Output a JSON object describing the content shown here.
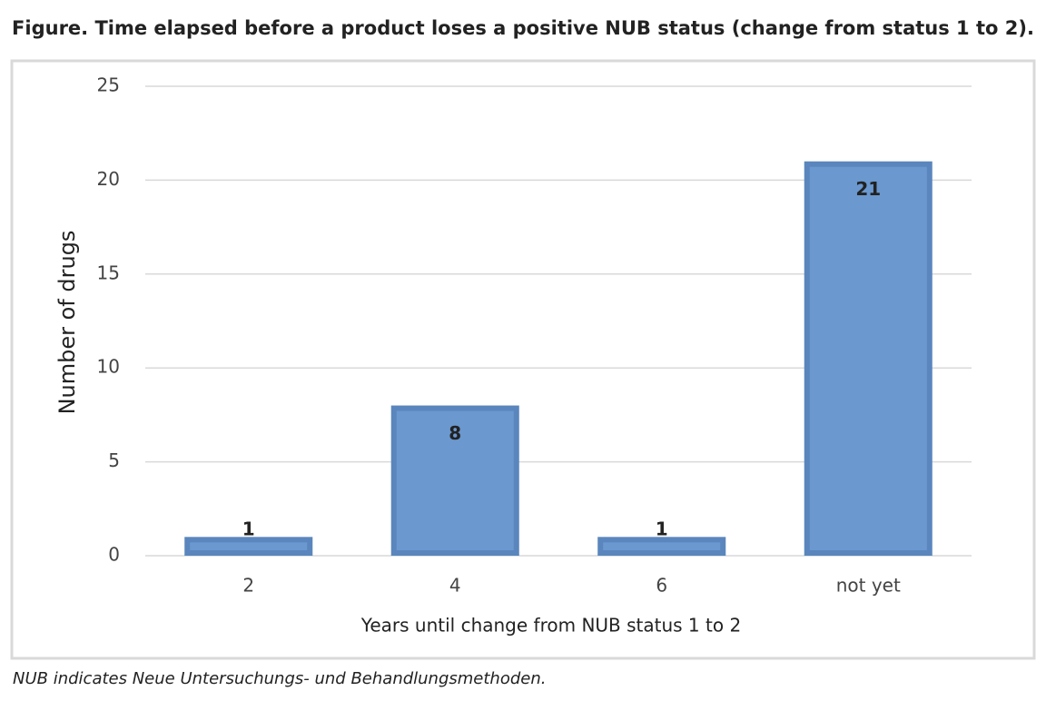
{
  "chart_data": {
    "type": "bar",
    "title": "Figure. Time elapsed before a product loses a positive NUB status (change from status 1 to 2).",
    "footnote": "NUB indicates Neue Untersuchungs- und Behandlungsmethoden.",
    "x_label": "Years until change from NUB status 1 to 2",
    "y_label": "Number of drugs",
    "categories": [
      "2",
      "4",
      "6",
      "not yet"
    ],
    "values": [
      1,
      8,
      1,
      21
    ],
    "color": "#6a98cf",
    "ylim": [
      0,
      25
    ],
    "yticks": [
      0,
      5,
      10,
      15,
      20,
      25
    ],
    "grid": true
  }
}
